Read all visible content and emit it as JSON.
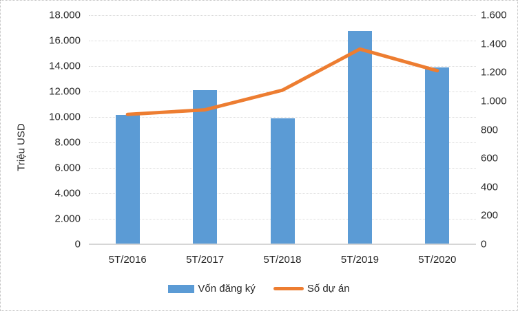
{
  "chart_data": {
    "type": "combo-bar-line",
    "categories": [
      "5T/2016",
      "5T/2017",
      "5T/2018",
      "5T/2019",
      "5T/2020"
    ],
    "series": [
      {
        "name": "Vốn đăng ký",
        "type": "bar",
        "axis": "left",
        "values": [
          10160,
          12130,
          9900,
          16740,
          13890
        ],
        "color": "#5B9BD5"
      },
      {
        "name": "Số dự án",
        "type": "line",
        "axis": "right",
        "values": [
          907,
          939,
          1076,
          1363,
          1212
        ],
        "color": "#ED7D31"
      }
    ],
    "left_axis": {
      "title": "Triệu USD",
      "min": 0,
      "max": 18000,
      "step": 2000,
      "tick_labels": [
        "18.000",
        "16.000",
        "14.000",
        "12.000",
        "10.000",
        "8.000",
        "6.000",
        "4.000",
        "2.000",
        "0"
      ]
    },
    "right_axis": {
      "min": 0,
      "max": 1600,
      "step": 200,
      "tick_labels": [
        "1.600",
        "1.400",
        "1.200",
        "1.000",
        "800",
        "600",
        "400",
        "200",
        "0"
      ]
    },
    "grid": "horizontal-dotted",
    "legend_position": "bottom",
    "legend": [
      {
        "label": "Vốn đăng ký",
        "swatch": "bar"
      },
      {
        "label": "Số dự án",
        "swatch": "line"
      }
    ],
    "colors": {
      "bar": "#5B9BD5",
      "line": "#ED7D31",
      "gridline": "#D9D9D9",
      "axis_line": "#D6D6D6",
      "text": "#262626"
    }
  }
}
